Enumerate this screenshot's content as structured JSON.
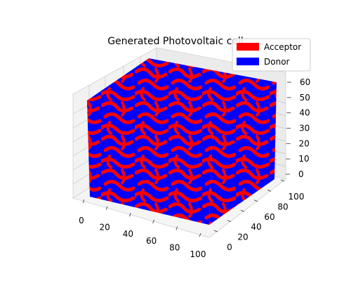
{
  "chart_data": {
    "type": "scatter3d",
    "title": "Generated Photovoltaic cell",
    "xlabel": "",
    "ylabel": "",
    "zlabel": "",
    "x_ticks": [
      "0",
      "20",
      "40",
      "60",
      "80",
      "100"
    ],
    "y_ticks": [
      "0",
      "20",
      "40",
      "60",
      "80",
      "100"
    ],
    "z_ticks": [
      "0",
      "10",
      "20",
      "30",
      "40",
      "50",
      "60"
    ],
    "xlim": [
      0,
      100
    ],
    "ylim": [
      0,
      100
    ],
    "zlim": [
      0,
      60
    ],
    "grid": true,
    "legend_placement": "top-right",
    "series": [
      {
        "name": "Acceptor",
        "color": "#ff0000"
      },
      {
        "name": "Donor",
        "color": "#0000ff"
      }
    ]
  }
}
